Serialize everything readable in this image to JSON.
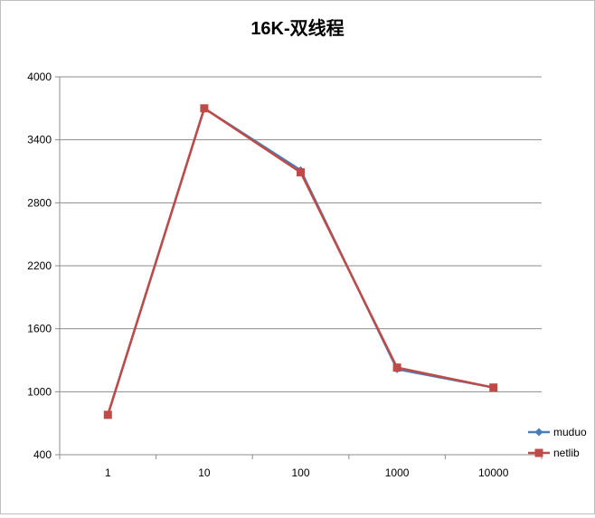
{
  "chart_data": {
    "type": "line",
    "title": "16K-双线程",
    "xlabel": "",
    "ylabel": "",
    "categories": [
      "1",
      "10",
      "100",
      "1000",
      "10000"
    ],
    "ylim": [
      400,
      4000
    ],
    "yticks": [
      400,
      1000,
      1600,
      2200,
      2800,
      3400,
      4000
    ],
    "grid": "horizontal",
    "legend_position": "right-bottom",
    "series": [
      {
        "name": "muduo",
        "values": [
          780,
          3700,
          3110,
          1215,
          1040
        ],
        "color": "#4a7ebb",
        "marker": "diamond"
      },
      {
        "name": "netlib",
        "values": [
          780,
          3700,
          3090,
          1230,
          1040
        ],
        "color": "#be4b48",
        "marker": "square"
      }
    ]
  }
}
